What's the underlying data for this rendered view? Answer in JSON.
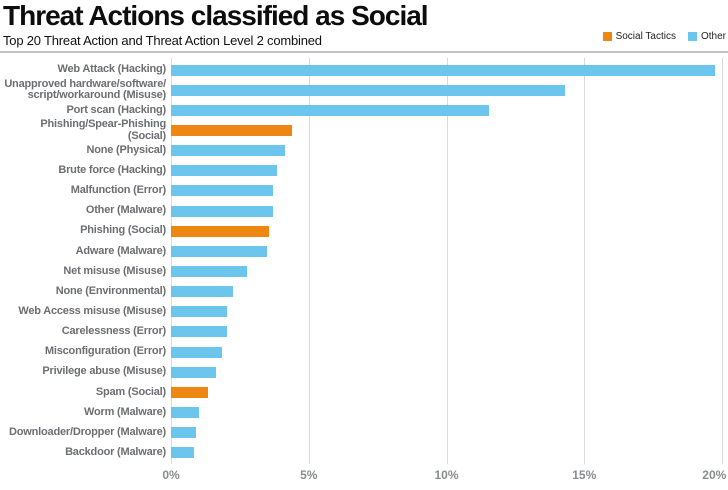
{
  "header": {
    "title": "Threat Actions classified as Social",
    "subtitle": "Top 20 Threat Action and Threat Action Level 2 combined"
  },
  "legend": {
    "items": [
      {
        "label": "Social Tactics",
        "color": "#EE8712"
      },
      {
        "label": "Other",
        "color": "#6CC5EC"
      }
    ]
  },
  "colors": {
    "social": "#EE8712",
    "other": "#6CC5EC",
    "grid": "#d9d9d9",
    "category_label": "#6d6e71",
    "tick_label": "#8a8c8e"
  },
  "chart_data": {
    "type": "bar",
    "orientation": "horizontal",
    "title": "Threat Actions classified as Social",
    "subtitle": "Top 20 Threat Action and Threat Action Level 2 combined",
    "xlabel": "",
    "ylabel": "",
    "value_unit": "%",
    "xlim": [
      0,
      20
    ],
    "x_ticks": [
      "0%",
      "5%",
      "10%",
      "15%",
      "20%"
    ],
    "grid": "vertical",
    "legend_position": "top-right",
    "bars": [
      {
        "label": "Web Attack (Hacking)",
        "value": 19.75,
        "group": "Other"
      },
      {
        "label": "Unapproved hardware/software/\nscript/workaround (Misuse)",
        "value": 14.3,
        "group": "Other"
      },
      {
        "label": "Port scan (Hacking)",
        "value": 11.55,
        "group": "Other"
      },
      {
        "label": "Phishing/Spear-Phishing (Social)",
        "value": 4.4,
        "group": "Social Tactics"
      },
      {
        "label": "None (Physical)",
        "value": 4.15,
        "group": "Other"
      },
      {
        "label": "Brute force (Hacking)",
        "value": 3.85,
        "group": "Other"
      },
      {
        "label": "Malfunction (Error)",
        "value": 3.7,
        "group": "Other"
      },
      {
        "label": "Other (Malware)",
        "value": 3.7,
        "group": "Other"
      },
      {
        "label": "Phishing (Social)",
        "value": 3.55,
        "group": "Social Tactics"
      },
      {
        "label": "Adware (Malware)",
        "value": 3.5,
        "group": "Other"
      },
      {
        "label": "Net misuse (Misuse)",
        "value": 2.75,
        "group": "Other"
      },
      {
        "label": "None (Environmental)",
        "value": 2.25,
        "group": "Other"
      },
      {
        "label": "Web Access misuse (Misuse)",
        "value": 2.05,
        "group": "Other"
      },
      {
        "label": "Carelessness (Error)",
        "value": 2.05,
        "group": "Other"
      },
      {
        "label": "Misconfiguration (Error)",
        "value": 1.85,
        "group": "Other"
      },
      {
        "label": "Privilege abuse (Misuse)",
        "value": 1.65,
        "group": "Other"
      },
      {
        "label": "Spam (Social)",
        "value": 1.35,
        "group": "Social Tactics"
      },
      {
        "label": "Worm (Malware)",
        "value": 1.0,
        "group": "Other"
      },
      {
        "label": "Downloader/Dropper (Malware)",
        "value": 0.9,
        "group": "Other"
      },
      {
        "label": "Backdoor (Malware)",
        "value": 0.85,
        "group": "Other"
      }
    ]
  }
}
